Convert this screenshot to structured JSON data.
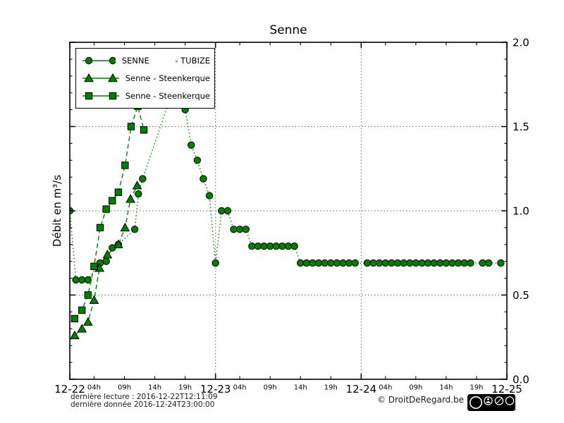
{
  "title": "Senne",
  "axes": {
    "ylabel": "Débit en m³/s",
    "y_ticks": [
      "0.0",
      "0.5",
      "1.0",
      "1.5",
      "2.0"
    ],
    "x_day_labels": [
      "12-22",
      "12-23",
      "12-24",
      "12-25"
    ],
    "x_hour_labels": [
      "04h",
      "09h",
      "14h",
      "19h"
    ]
  },
  "legend": {
    "entries": [
      {
        "label": "SENNE          - TUBIZE",
        "marker": "circle"
      },
      {
        "label": "Senne - Steenkerque",
        "marker": "triangle"
      },
      {
        "label": "Senne - Steenkerque",
        "marker": "square"
      }
    ]
  },
  "footer": {
    "last_reading": "dernière lecture : 2016-12-22T12:11:09",
    "last_data": "dernière donnée  2016-12-24T23:00:00",
    "copyright": "© DroitDeRegard.be",
    "cc_badges": [
      "CC",
      "BY",
      "NC",
      "SA"
    ]
  },
  "colors": {
    "series_green": "#008000",
    "marker_edge": "#000000",
    "grid": "#666666",
    "frame": "#000000"
  },
  "chart_data": {
    "type": "line",
    "title": "Senne",
    "ylabel": "Débit en m³/s",
    "ylim": [
      0.0,
      2.0
    ],
    "xlim_hours": [
      0,
      72
    ],
    "x_unit": "hours from 2016-12-22 00:00",
    "x_day_ticks": [
      0,
      24,
      48,
      72
    ],
    "x_hour_ticks_per_day": [
      4,
      9,
      14,
      19
    ],
    "grid": true,
    "legend_position": "upper left",
    "series": [
      {
        "name": "SENNE - TUBIZE",
        "marker": "circle",
        "linestyle": "dotted",
        "points": [
          [
            0,
            1.0
          ],
          [
            1,
            0.59
          ],
          [
            2,
            0.59
          ],
          [
            3,
            0.59
          ],
          [
            5,
            0.69
          ],
          [
            6,
            0.7
          ],
          [
            7,
            0.78
          ],
          [
            8,
            0.8
          ],
          [
            10.7,
            0.89
          ],
          [
            11.3,
            1.1
          ],
          [
            12,
            1.19
          ],
          [
            17,
            1.72
          ],
          [
            19,
            1.6
          ],
          [
            20,
            1.39
          ],
          [
            21,
            1.3
          ],
          [
            22,
            1.19
          ],
          [
            23,
            1.09
          ],
          [
            24,
            0.69
          ],
          [
            25,
            1.0
          ],
          [
            26,
            1.0
          ],
          [
            27,
            0.89
          ],
          [
            28,
            0.89
          ],
          [
            29,
            0.89
          ],
          [
            30,
            0.79
          ],
          [
            31,
            0.79
          ],
          [
            32,
            0.79
          ],
          [
            33,
            0.79
          ],
          [
            34,
            0.79
          ],
          [
            35,
            0.79
          ],
          [
            36,
            0.79
          ],
          [
            37,
            0.79
          ],
          [
            38,
            0.69
          ],
          [
            39,
            0.69
          ],
          [
            40,
            0.69
          ],
          [
            41,
            0.69
          ],
          [
            42,
            0.69
          ],
          [
            43,
            0.69
          ],
          [
            44,
            0.69
          ],
          [
            45,
            0.69
          ],
          [
            46,
            0.69
          ],
          [
            47,
            0.69
          ],
          [
            49,
            0.69
          ],
          [
            50,
            0.69
          ],
          [
            51,
            0.69
          ],
          [
            52,
            0.69
          ],
          [
            53,
            0.69
          ],
          [
            54,
            0.69
          ],
          [
            55,
            0.69
          ],
          [
            56,
            0.69
          ],
          [
            57,
            0.69
          ],
          [
            58,
            0.69
          ],
          [
            59,
            0.69
          ],
          [
            60,
            0.69
          ],
          [
            61,
            0.69
          ],
          [
            62,
            0.69
          ],
          [
            63,
            0.69
          ],
          [
            64,
            0.69
          ],
          [
            65,
            0.69
          ],
          [
            66,
            0.69
          ],
          [
            68,
            0.69
          ],
          [
            69,
            0.69
          ],
          [
            71,
            0.69
          ]
        ]
      },
      {
        "name": "Senne - Steenkerque",
        "marker": "triangle",
        "linestyle": "dashed",
        "points": [
          [
            0.8,
            0.26
          ],
          [
            2,
            0.3
          ],
          [
            3,
            0.34
          ],
          [
            4,
            0.47
          ],
          [
            4.9,
            0.66
          ],
          [
            6.2,
            0.74
          ],
          [
            8,
            0.8
          ],
          [
            9.1,
            0.9
          ],
          [
            10,
            1.07
          ],
          [
            11.1,
            1.15
          ]
        ]
      },
      {
        "name": "Senne - Steenkerque",
        "marker": "square",
        "linestyle": "dashed",
        "points": [
          [
            0.8,
            0.36
          ],
          [
            2,
            0.41
          ],
          [
            3,
            0.5
          ],
          [
            4,
            0.67
          ],
          [
            5,
            0.9
          ],
          [
            6,
            1.01
          ],
          [
            7,
            1.06
          ],
          [
            8,
            1.11
          ],
          [
            9.1,
            1.27
          ],
          [
            10.1,
            1.5
          ],
          [
            11.2,
            1.62
          ],
          [
            12.2,
            1.48
          ]
        ]
      }
    ]
  }
}
